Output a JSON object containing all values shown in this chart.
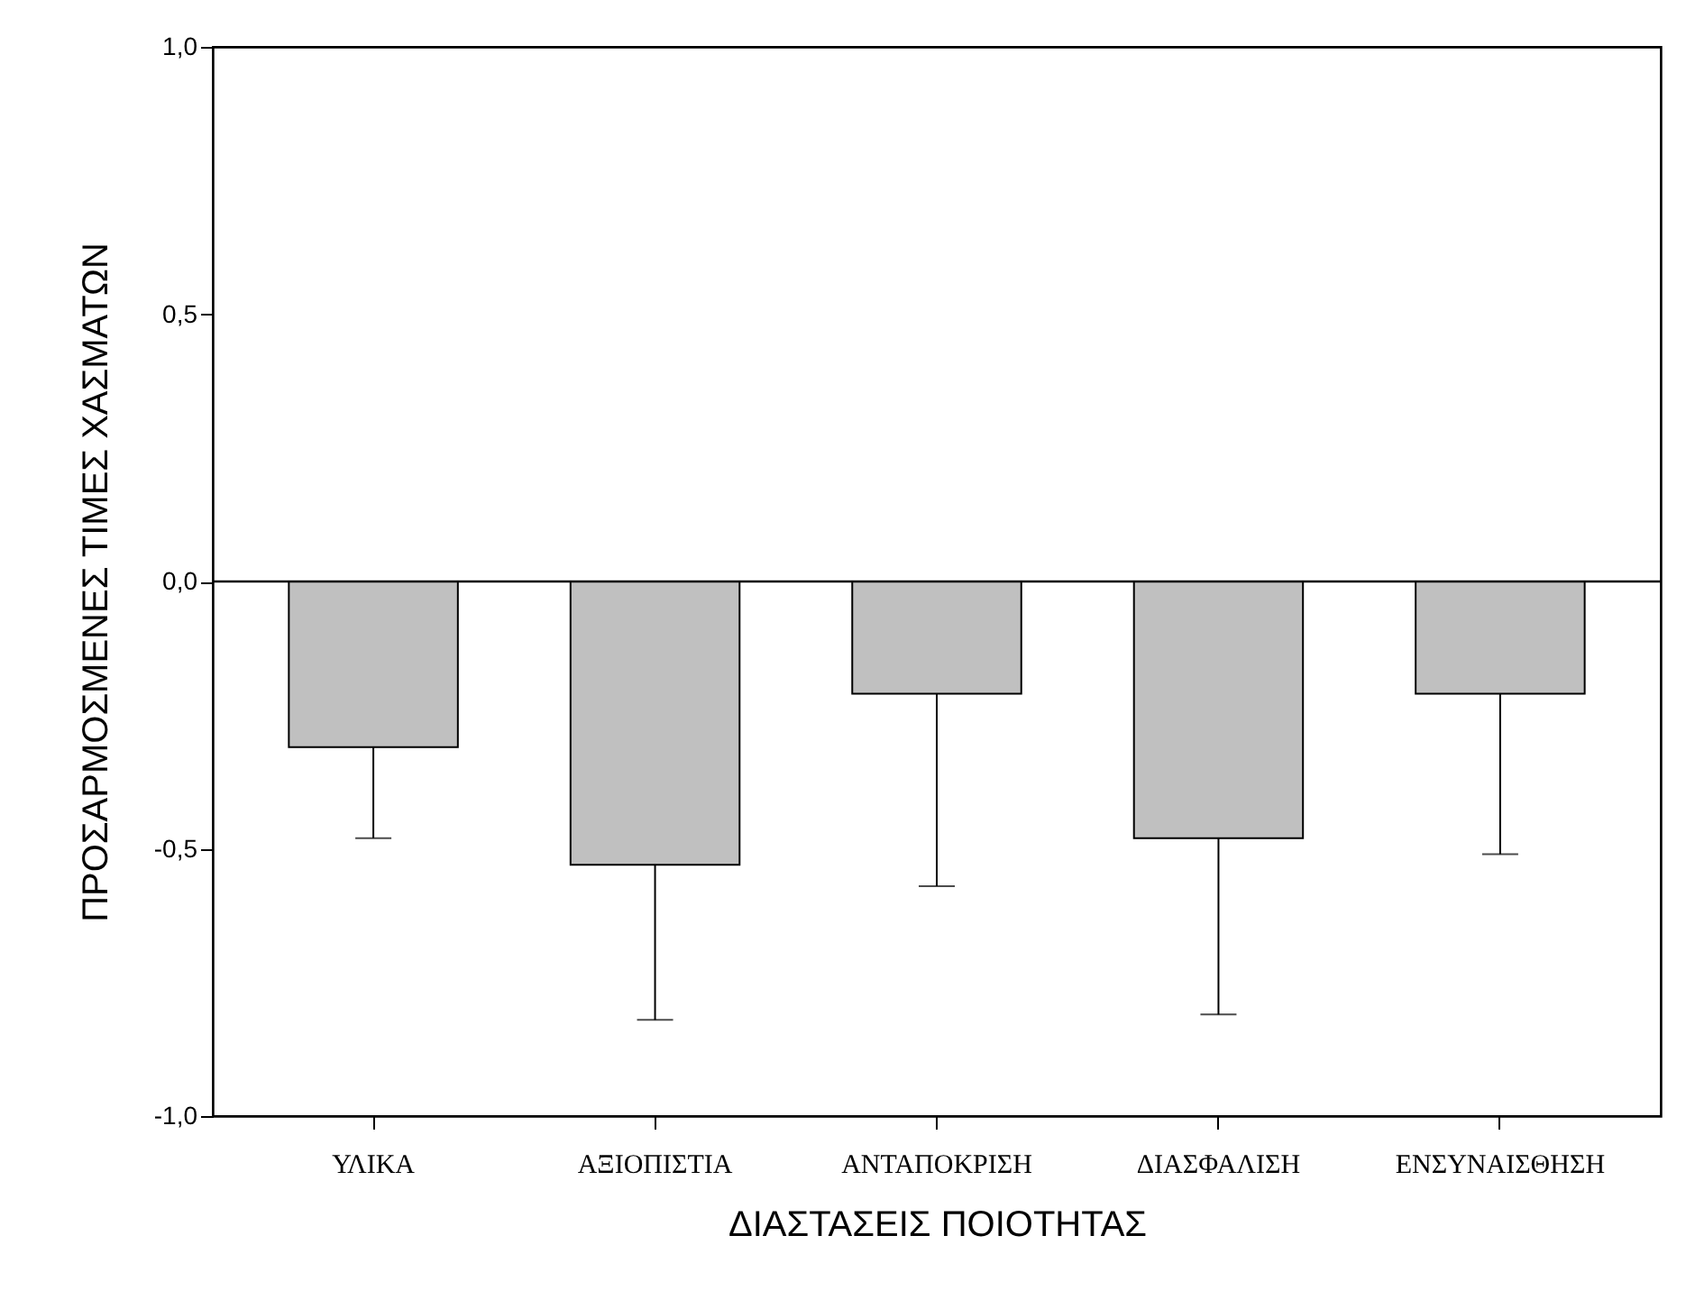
{
  "chart_data": {
    "type": "bar",
    "xlabel": "ΔΙΑΣΤΑΣΕΙΣ ΠΟΙΟΤΗΤΑΣ",
    "ylabel": "ΠΡΟΣΑΡΜΟΣΜΕΝΕΣ ΤΙΜΕΣ ΧΑΣΜΑΤΩΝ",
    "categories": [
      "ΥΛΙΚΑ",
      "ΑΞΙΟΠΙΣΤΙΑ",
      "ΑΝΤΑΠΟΚΡΙΣΗ",
      "ΔΙΑΣΦΑΛΙΣΗ",
      "ΕΝΣΥΝΑΙΣΘΗΣΗ"
    ],
    "values": [
      -0.31,
      -0.53,
      -0.21,
      -0.48,
      -0.21
    ],
    "errors": [
      [
        -0.48,
        -0.31
      ],
      [
        -0.82,
        -0.53
      ],
      [
        -0.57,
        -0.21
      ],
      [
        -0.81,
        -0.48
      ],
      [
        -0.51,
        -0.21
      ]
    ],
    "color": "#c0c0c0",
    "ylim": [
      -1.0,
      1.0
    ],
    "yticks": [
      {
        "value": -1.0,
        "label": "-1,0"
      },
      {
        "value": -0.5,
        "label": "-0,5"
      },
      {
        "value": 0,
        "label": "0,0"
      },
      {
        "value": 0.5,
        "label": "0,5"
      },
      {
        "value": 1.0,
        "label": "1,0"
      }
    ],
    "ref_lines": [
      {
        "axis": "y",
        "value": 0,
        "color": "#000000"
      }
    ],
    "grid": false
  }
}
